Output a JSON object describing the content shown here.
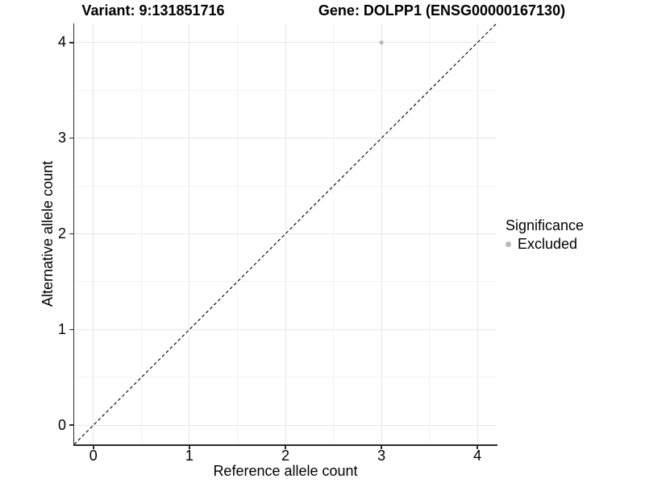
{
  "figure": {
    "background": "#ffffff",
    "text_color": "#000000",
    "axis_line_color": "#2b2b2b",
    "grid_major_color": "#e7e7e7",
    "grid_minor_color": "#f3f3f3"
  },
  "chart_data": {
    "type": "scatter",
    "title_left": "Variant: 9:131851716",
    "title_right": "Gene: DOLPP1 (ENSG00000167130)",
    "xlabel": "Reference allele count",
    "ylabel": "Alternative allele count",
    "xlim": [
      -0.2,
      4.2
    ],
    "ylim": [
      -0.2,
      4.2
    ],
    "xticks": [
      0,
      1,
      2,
      3,
      4
    ],
    "yticks": [
      0,
      1,
      2,
      3,
      4
    ],
    "x_minor_gridlines": [
      0.5,
      1.5,
      2.5,
      3.5
    ],
    "y_minor_gridlines": [
      0.5,
      1.5,
      2.5,
      3.5
    ],
    "grid": "major and minor gridlines, light grey on white panel",
    "identity_line": {
      "slope": 1,
      "intercept": 0,
      "style": "dashed",
      "color": "#000000"
    },
    "series": [
      {
        "name": "Excluded",
        "color": "#b9b9b9",
        "points": [
          {
            "x": 3,
            "y": 4
          }
        ]
      }
    ],
    "legend": {
      "title": "Significance",
      "position": "right",
      "entries": [
        {
          "label": "Excluded",
          "color": "#b9b9b9",
          "marker": "dot-icon"
        }
      ]
    }
  }
}
